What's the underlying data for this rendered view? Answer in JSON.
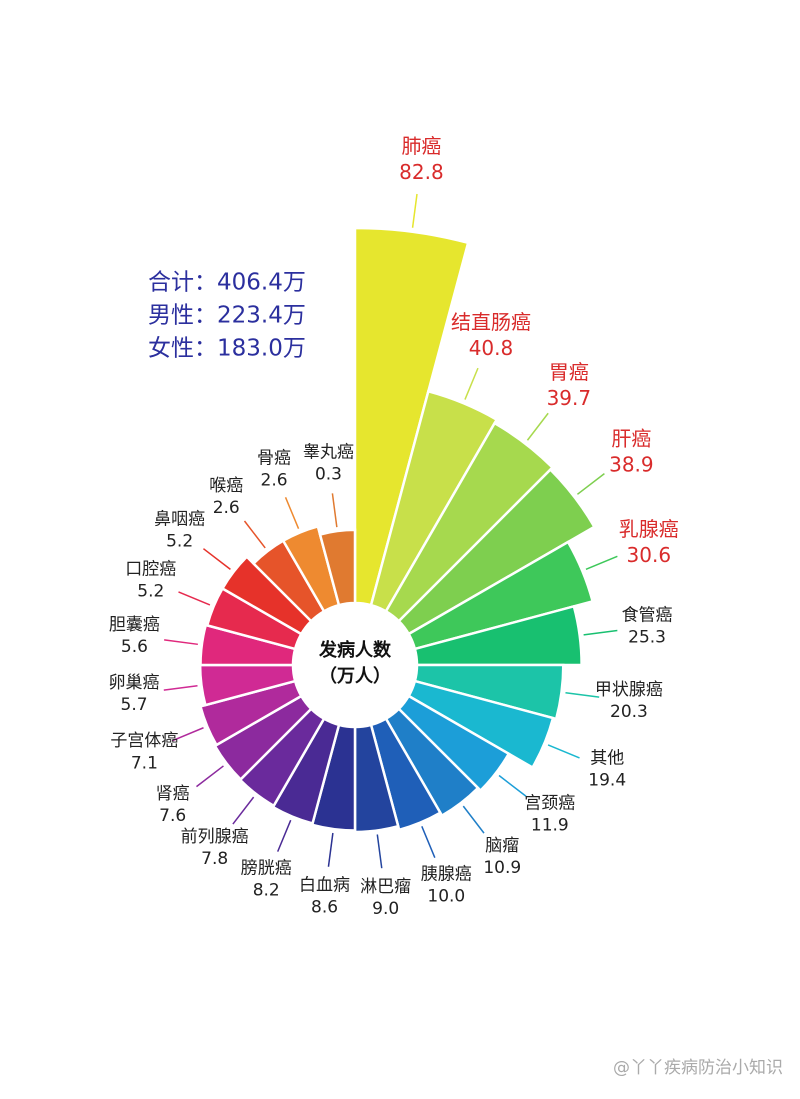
{
  "chart_data": {
    "type": "polar-bar",
    "summary": [
      "合计：406.4万",
      "男性：223.4万",
      "女性：183.0万"
    ],
    "center_label": [
      "发病人数",
      "（万人）"
    ],
    "watermark": "@丫丫疾病防治小知识",
    "categories": [
      "肺癌",
      "结直肠癌",
      "胃癌",
      "肝癌",
      "乳腺癌",
      "食管癌",
      "甲状腺癌",
      "其他",
      "宫颈癌",
      "脑瘤",
      "胰腺癌",
      "淋巴瘤",
      "白血病",
      "膀胱癌",
      "前列腺癌",
      "肾癌",
      "子宫体癌",
      "卵巢癌",
      "胆囊癌",
      "口腔癌",
      "鼻咽癌",
      "喉癌",
      "骨癌",
      "睾丸癌"
    ],
    "values": [
      82.8,
      40.8,
      39.7,
      38.9,
      30.6,
      25.3,
      20.3,
      19.4,
      11.9,
      10.9,
      10.0,
      9.0,
      8.6,
      8.2,
      7.8,
      7.6,
      7.1,
      5.7,
      5.6,
      5.2,
      5.2,
      2.6,
      2.6,
      0.3
    ],
    "value_labels": [
      "82.8",
      "40.8",
      "39.7",
      "38.9",
      "30.6",
      "25.3",
      "20.3",
      "19.4",
      "11.9",
      "10.9",
      "10.0",
      "9.0",
      "8.6",
      "8.2",
      "7.8",
      "7.6",
      "7.1",
      "5.7",
      "5.6",
      "5.2",
      "5.2",
      "2.6",
      "2.6",
      "0.3"
    ],
    "colors": [
      "#e6e62e",
      "#c8e04a",
      "#a6d94e",
      "#7ecf4f",
      "#3ec85a",
      "#18c070",
      "#1cc4a8",
      "#1ab8d0",
      "#1c9ed8",
      "#1f7fc8",
      "#1f5fb8",
      "#23449e",
      "#2b3292",
      "#4a2a94",
      "#6a2a9c",
      "#8c2a9e",
      "#b02a9c",
      "#d02a94",
      "#e0287c",
      "#e62a4e",
      "#e6322a",
      "#e6542a",
      "#ee8a30",
      "#e07a30"
    ],
    "label_colors": [
      "#d92b2b",
      "#d92b2b",
      "#d92b2b",
      "#d92b2b",
      "#d92b2b",
      "#222",
      "#222",
      "#222",
      "#222",
      "#222",
      "#222",
      "#222",
      "#222",
      "#222",
      "#222",
      "#222",
      "#222",
      "#222",
      "#222",
      "#222",
      "#222",
      "#222",
      "#222",
      "#222"
    ]
  }
}
